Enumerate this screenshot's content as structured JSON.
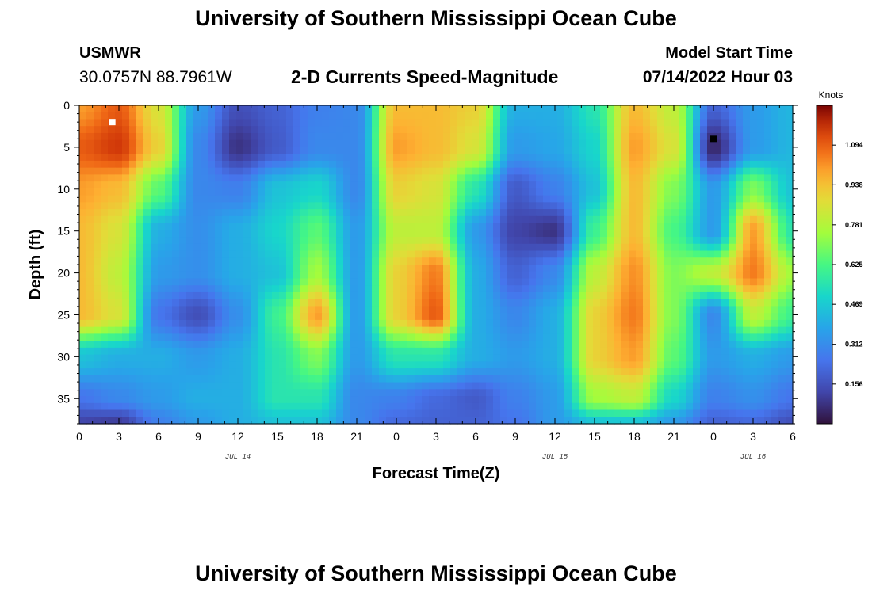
{
  "header": {
    "title": "University of Southern Mississippi Ocean Cube",
    "station": "USMWR",
    "coords": "30.0757N  88.7961W",
    "subtitle": "2-D Currents Speed-Magnitude",
    "start_label": "Model Start Time",
    "start_time": "07/14/2022 Hour 03"
  },
  "footer": {
    "title": "University of Southern Mississippi Ocean Cube"
  },
  "chart_data": {
    "type": "heatmap",
    "xlabel": "Forecast Time(Z)",
    "ylabel": "Depth (ft)",
    "x_range_hours": [
      0,
      54
    ],
    "x_tick_labels": [
      "0",
      "3",
      "6",
      "9",
      "12",
      "15",
      "18",
      "21",
      "0",
      "3",
      "6",
      "9",
      "12",
      "15",
      "18",
      "21",
      "0",
      "3",
      "6"
    ],
    "date_labels": [
      {
        "text": "JUL 14",
        "hour": 12
      },
      {
        "text": "JUL 15",
        "hour": 36
      },
      {
        "text": "JUL 16",
        "hour": 51
      }
    ],
    "y_range_ft": [
      0,
      38
    ],
    "y_tick_labels": [
      "0",
      "5",
      "10",
      "15",
      "20",
      "25",
      "30",
      "35"
    ],
    "colorbar": {
      "unit": "Knots",
      "min": 0,
      "max": 1.25,
      "tick_labels": [
        "1.094",
        "0.938",
        "0.781",
        "0.625",
        "0.469",
        "0.312",
        "0.156"
      ],
      "tick_values": [
        1.094,
        0.938,
        0.781,
        0.625,
        0.469,
        0.312,
        0.156
      ]
    },
    "markers": [
      {
        "hour": 2.5,
        "depth": 2,
        "color": "#ffffff"
      },
      {
        "hour": 48,
        "depth": 4,
        "color": "#000000"
      }
    ],
    "speed_field_knots": {
      "x_hours": [
        0,
        3,
        6,
        9,
        12,
        15,
        18,
        21,
        24,
        27,
        30,
        33,
        36,
        39,
        42,
        45,
        48,
        51,
        54
      ],
      "y_depth_ft": [
        0,
        5,
        10,
        15,
        20,
        25,
        30,
        35,
        38
      ],
      "rows": [
        [
          1.0,
          1.1,
          0.85,
          0.35,
          0.15,
          0.2,
          0.28,
          0.3,
          0.95,
          0.95,
          0.9,
          0.4,
          0.4,
          0.55,
          0.95,
          0.8,
          0.2,
          0.35,
          0.42
        ],
        [
          1.1,
          1.16,
          0.9,
          0.3,
          0.08,
          0.18,
          0.3,
          0.3,
          1.0,
          0.95,
          0.85,
          0.35,
          0.38,
          0.5,
          1.0,
          0.85,
          0.05,
          0.35,
          0.42
        ],
        [
          1.0,
          0.95,
          0.65,
          0.3,
          0.28,
          0.45,
          0.5,
          0.3,
          0.9,
          0.85,
          0.55,
          0.18,
          0.28,
          0.45,
          0.95,
          0.7,
          0.35,
          0.7,
          0.45
        ],
        [
          0.95,
          0.85,
          0.4,
          0.32,
          0.4,
          0.5,
          0.65,
          0.35,
          0.8,
          0.8,
          0.35,
          0.12,
          0.08,
          0.6,
          0.95,
          0.62,
          0.35,
          1.0,
          0.55
        ],
        [
          0.95,
          0.8,
          0.35,
          0.32,
          0.4,
          0.45,
          0.75,
          0.35,
          0.9,
          1.05,
          0.4,
          0.2,
          0.3,
          0.8,
          1.02,
          0.7,
          0.8,
          1.05,
          0.75
        ],
        [
          0.95,
          0.85,
          0.25,
          0.15,
          0.32,
          0.6,
          1.0,
          0.35,
          0.9,
          1.1,
          0.4,
          0.3,
          0.4,
          0.9,
          1.05,
          0.7,
          0.3,
          0.8,
          0.6
        ],
        [
          0.45,
          0.4,
          0.4,
          0.35,
          0.4,
          0.55,
          0.7,
          0.35,
          0.55,
          0.55,
          0.4,
          0.35,
          0.4,
          0.9,
          1.0,
          0.65,
          0.35,
          0.4,
          0.35
        ],
        [
          0.25,
          0.3,
          0.35,
          0.4,
          0.4,
          0.55,
          0.55,
          0.3,
          0.28,
          0.22,
          0.18,
          0.28,
          0.35,
          0.75,
          0.8,
          0.5,
          0.28,
          0.32,
          0.25
        ],
        [
          0.12,
          0.1,
          0.28,
          0.35,
          0.4,
          0.45,
          0.45,
          0.3,
          0.22,
          0.2,
          0.2,
          0.25,
          0.35,
          0.45,
          0.45,
          0.35,
          0.2,
          0.22,
          0.15
        ]
      ]
    }
  }
}
